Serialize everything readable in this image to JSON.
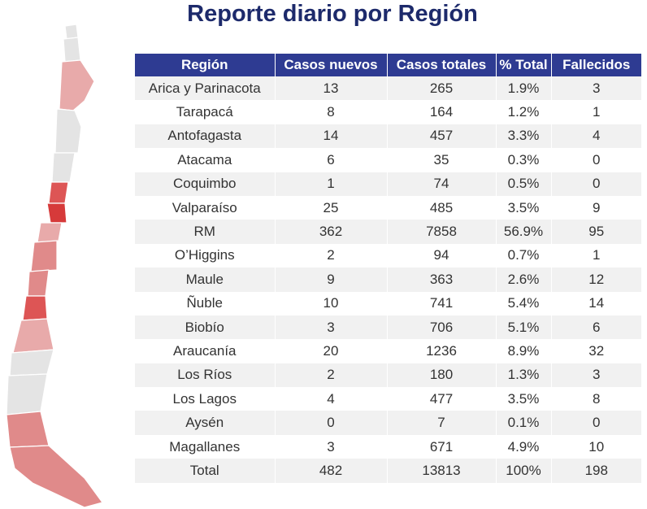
{
  "title": "Reporte diario por Región",
  "chart_data": {
    "type": "table",
    "columns": [
      "Región",
      "Casos nuevos",
      "Casos totales",
      "% Total",
      "Fallecidos"
    ],
    "rows": [
      [
        "Arica y Parinacota",
        "13",
        "265",
        "1.9%",
        "3"
      ],
      [
        "Tarapacá",
        "8",
        "164",
        "1.2%",
        "1"
      ],
      [
        "Antofagasta",
        "14",
        "457",
        "3.3%",
        "4"
      ],
      [
        "Atacama",
        "6",
        "35",
        "0.3%",
        "0"
      ],
      [
        "Coquimbo",
        "1",
        "74",
        "0.5%",
        "0"
      ],
      [
        "Valparaíso",
        "25",
        "485",
        "3.5%",
        "9"
      ],
      [
        "RM",
        "362",
        "7858",
        "56.9%",
        "95"
      ],
      [
        "O’Higgins",
        "2",
        "94",
        "0.7%",
        "1"
      ],
      [
        "Maule",
        "9",
        "363",
        "2.6%",
        "12"
      ],
      [
        "Ñuble",
        "10",
        "741",
        "5.4%",
        "14"
      ],
      [
        "Biobío",
        "3",
        "706",
        "5.1%",
        "6"
      ],
      [
        "Araucanía",
        "20",
        "1236",
        "8.9%",
        "32"
      ],
      [
        "Los Ríos",
        "2",
        "180",
        "1.3%",
        "3"
      ],
      [
        "Los Lagos",
        "4",
        "477",
        "3.5%",
        "8"
      ],
      [
        "Aysén",
        "0",
        "7",
        "0.1%",
        "0"
      ],
      [
        "Magallanes",
        "3",
        "671",
        "4.9%",
        "10"
      ]
    ],
    "total": [
      "Total",
      "482",
      "13813",
      "100%",
      "198"
    ]
  },
  "map": {
    "colors": {
      "low": "#e4e4e4",
      "mid_light": "#e8aaaa",
      "mid": "#e08a8a",
      "high": "#dd5555",
      "highest": "#d63a3a"
    },
    "regions": [
      {
        "name": "Arica y Parinacota",
        "shade": "low"
      },
      {
        "name": "Tarapacá",
        "shade": "low"
      },
      {
        "name": "Antofagasta",
        "shade": "mid_light"
      },
      {
        "name": "Atacama",
        "shade": "low"
      },
      {
        "name": "Coquimbo",
        "shade": "low"
      },
      {
        "name": "Valparaíso",
        "shade": "high"
      },
      {
        "name": "RM",
        "shade": "highest"
      },
      {
        "name": "O’Higgins",
        "shade": "mid_light"
      },
      {
        "name": "Maule",
        "shade": "mid"
      },
      {
        "name": "Ñuble",
        "shade": "mid"
      },
      {
        "name": "Biobío",
        "shade": "high"
      },
      {
        "name": "Araucanía",
        "shade": "mid_light"
      },
      {
        "name": "Los Ríos",
        "shade": "low"
      },
      {
        "name": "Los Lagos",
        "shade": "low"
      },
      {
        "name": "Aysén",
        "shade": "mid"
      },
      {
        "name": "Magallanes",
        "shade": "mid"
      }
    ]
  }
}
